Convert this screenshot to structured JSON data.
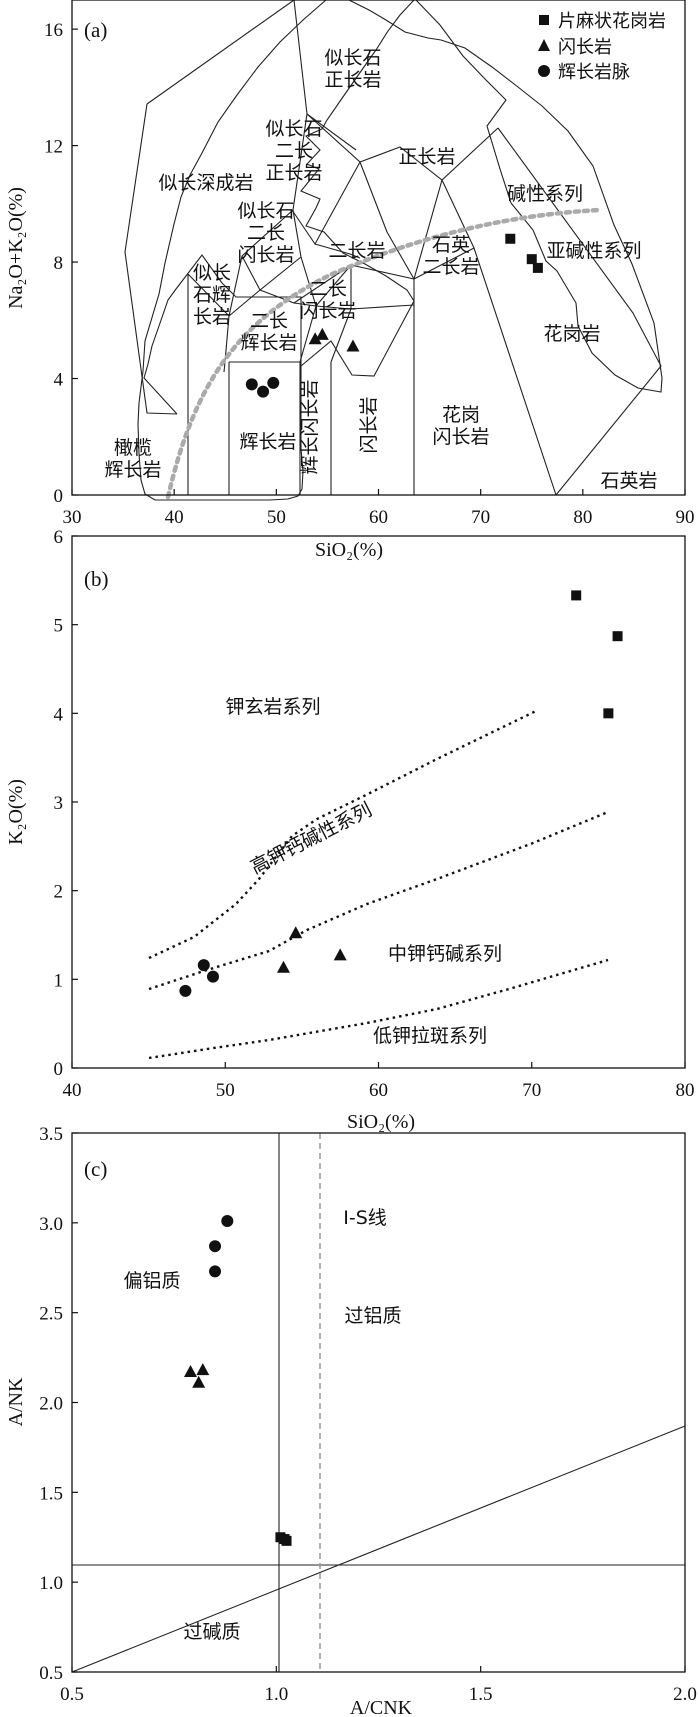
{
  "legend": {
    "items": [
      {
        "label": "片麻状花岗岩",
        "marker": "square"
      },
      {
        "label": "闪长岩",
        "marker": "triangle"
      },
      {
        "label": "辉长岩脉",
        "marker": "circle"
      }
    ]
  },
  "chart_data": [
    {
      "panel": "(a)",
      "type": "scatter",
      "xlabel": "SiO₂(%)",
      "ylabel": "Na₂O+K₂O(%)",
      "xlim": [
        30,
        90
      ],
      "ylim": [
        0,
        17
      ],
      "xticks": [
        30,
        40,
        50,
        60,
        70,
        80,
        90
      ],
      "yticks": [
        0,
        4,
        8,
        12,
        16
      ],
      "field_labels": [
        {
          "id": "a1",
          "lines": [
            "似长石",
            "正长岩"
          ]
        },
        {
          "id": "a2",
          "lines": [
            "似长石",
            "二长",
            "正长岩"
          ]
        },
        {
          "id": "a3",
          "lines": [
            "似长深成岩"
          ]
        },
        {
          "id": "a4",
          "lines": [
            "正长岩"
          ]
        },
        {
          "id": "a5",
          "lines": [
            "碱性系列"
          ]
        },
        {
          "id": "a6",
          "lines": [
            "似长石",
            "二长",
            "闪长岩"
          ]
        },
        {
          "id": "a7",
          "lines": [
            "二长岩"
          ]
        },
        {
          "id": "a8",
          "lines": [
            "石英",
            "二长岩"
          ]
        },
        {
          "id": "a9",
          "lines": [
            "亚碱性系列"
          ]
        },
        {
          "id": "a10",
          "lines": [
            "似长",
            "石辉",
            "长岩"
          ]
        },
        {
          "id": "a11",
          "lines": [
            "二长",
            "闪长岩"
          ]
        },
        {
          "id": "a12",
          "lines": [
            "二长",
            "辉长岩"
          ]
        },
        {
          "id": "a13",
          "lines": [
            "花岗岩"
          ]
        },
        {
          "id": "a14",
          "lines": [
            "辉长岩"
          ]
        },
        {
          "id": "a15",
          "lines": [
            "花岗",
            "闪长岩"
          ]
        },
        {
          "id": "a16",
          "lines": [
            "橄榄",
            "辉长岩"
          ]
        },
        {
          "id": "a17",
          "lines": [
            "石英岩"
          ]
        },
        {
          "id": "a18",
          "lines": [
            "辉长闪长岩"
          ]
        },
        {
          "id": "a19",
          "lines": [
            "闪长岩"
          ]
        }
      ],
      "series": [
        {
          "name": "片麻状花岗岩",
          "marker": "square",
          "points": [
            [
              72.9,
              8.8
            ],
            [
              75.0,
              8.1
            ],
            [
              75.6,
              7.8
            ]
          ]
        },
        {
          "name": "闪长岩",
          "marker": "triangle",
          "points": [
            [
              53.8,
              5.35
            ],
            [
              54.5,
              5.5
            ],
            [
              57.5,
              5.1
            ]
          ]
        },
        {
          "name": "辉长岩脉",
          "marker": "circle",
          "points": [
            [
              47.6,
              3.8
            ],
            [
              48.7,
              3.55
            ],
            [
              49.7,
              3.85
            ]
          ]
        }
      ]
    },
    {
      "panel": "(b)",
      "type": "scatter",
      "xlabel": "SiO₂(%)",
      "ylabel": "K₂O(%)",
      "xlim": [
        40,
        80
      ],
      "ylim": [
        0,
        6
      ],
      "xticks": [
        40,
        50,
        60,
        70,
        80
      ],
      "yticks": [
        0,
        1,
        2,
        3,
        4,
        5,
        6
      ],
      "field_labels": [
        {
          "id": "b1",
          "lines": [
            "钾玄岩系列"
          ]
        },
        {
          "id": "b2",
          "lines": [
            "高钾钙碱性系列"
          ]
        },
        {
          "id": "b3",
          "lines": [
            "中钾钙碱系列"
          ]
        },
        {
          "id": "b4",
          "lines": [
            "低钾拉斑系列"
          ]
        }
      ],
      "series": [
        {
          "name": "片麻状花岗岩",
          "marker": "square",
          "points": [
            [
              72.9,
              5.33
            ],
            [
              75.0,
              4.0
            ],
            [
              75.6,
              4.87
            ]
          ]
        },
        {
          "name": "闪长岩",
          "marker": "triangle",
          "points": [
            [
              53.8,
              1.13
            ],
            [
              54.6,
              1.52
            ],
            [
              57.5,
              1.27
            ]
          ]
        },
        {
          "name": "辉长岩脉",
          "marker": "circle",
          "points": [
            [
              47.4,
              0.87
            ],
            [
              48.6,
              1.16
            ],
            [
              49.2,
              1.03
            ]
          ]
        }
      ]
    },
    {
      "panel": "(c)",
      "type": "scatter",
      "xlabel": "A/CNK",
      "ylabel": "A/NK",
      "xlim": [
        0.5,
        2.0
      ],
      "ylim": [
        0.5,
        3.5
      ],
      "xticks": [
        0.5,
        1.0,
        1.5,
        2.0
      ],
      "yticks": [
        0.5,
        1.0,
        1.5,
        2.0,
        2.5,
        3.0,
        3.5
      ],
      "field_labels": [
        {
          "id": "c1",
          "lines": [
            "I-S线"
          ]
        },
        {
          "id": "c2",
          "lines": [
            "偏铝质"
          ]
        },
        {
          "id": "c3",
          "lines": [
            "过铝质"
          ]
        },
        {
          "id": "c4",
          "lines": [
            "过碱质"
          ]
        }
      ],
      "series": [
        {
          "name": "片麻状花岗岩",
          "marker": "square",
          "points": [
            [
              1.01,
              1.25
            ],
            [
              1.02,
              1.24
            ],
            [
              1.025,
              1.23
            ]
          ]
        },
        {
          "name": "闪长岩",
          "marker": "triangle",
          "points": [
            [
              0.79,
              2.17
            ],
            [
              0.81,
              2.11
            ],
            [
              0.82,
              2.18
            ]
          ]
        },
        {
          "name": "辉长岩脉",
          "marker": "circle",
          "points": [
            [
              0.85,
              2.73
            ],
            [
              0.85,
              2.87
            ],
            [
              0.88,
              3.01
            ]
          ]
        }
      ]
    }
  ]
}
